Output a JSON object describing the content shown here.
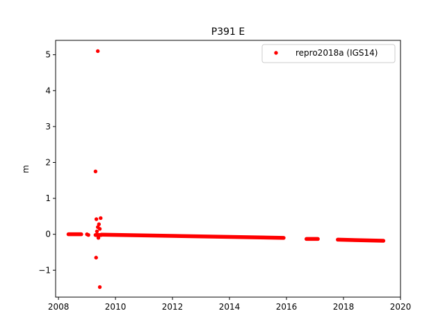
{
  "chart_data": {
    "type": "scatter",
    "title": "P391 E",
    "xlabel": "",
    "ylabel": "m",
    "xlim": [
      2007.9,
      2020.0
    ],
    "ylim": [
      -1.75,
      5.4
    ],
    "x_ticks": [
      2008,
      2010,
      2012,
      2014,
      2016,
      2018,
      2020
    ],
    "y_ticks": [
      -1,
      0,
      1,
      2,
      3,
      4,
      5
    ],
    "grid": false,
    "legend_position": "top-right",
    "series": [
      {
        "name": "repro2018a (IGS14)",
        "color": "#ff0000",
        "segments": [
          {
            "x_start": 2008.35,
            "x_end": 2008.8,
            "y_start": 0.0,
            "y_end": 0.0
          },
          {
            "x_start": 2009.3,
            "x_end": 2009.5,
            "y_start": -0.02,
            "y_end": -0.02
          },
          {
            "x_start": 2009.5,
            "x_end": 2015.9,
            "y_start": -0.01,
            "y_end": -0.1
          },
          {
            "x_start": 2016.7,
            "x_end": 2017.1,
            "y_start": -0.13,
            "y_end": -0.13
          },
          {
            "x_start": 2017.8,
            "x_end": 2019.4,
            "y_start": -0.15,
            "y_end": -0.18
          }
        ],
        "points": [
          {
            "x": 2009.0,
            "y": 0.0
          },
          {
            "x": 2009.05,
            "y": -0.02
          },
          {
            "x": 2009.38,
            "y": 5.1
          },
          {
            "x": 2009.3,
            "y": 1.75
          },
          {
            "x": 2009.33,
            "y": 0.42
          },
          {
            "x": 2009.48,
            "y": 0.45
          },
          {
            "x": 2009.42,
            "y": 0.28
          },
          {
            "x": 2009.38,
            "y": 0.2
          },
          {
            "x": 2009.45,
            "y": 0.15
          },
          {
            "x": 2009.35,
            "y": 0.08
          },
          {
            "x": 2009.4,
            "y": -0.1
          },
          {
            "x": 2009.32,
            "y": -0.65
          },
          {
            "x": 2009.45,
            "y": -1.47
          }
        ]
      }
    ]
  }
}
